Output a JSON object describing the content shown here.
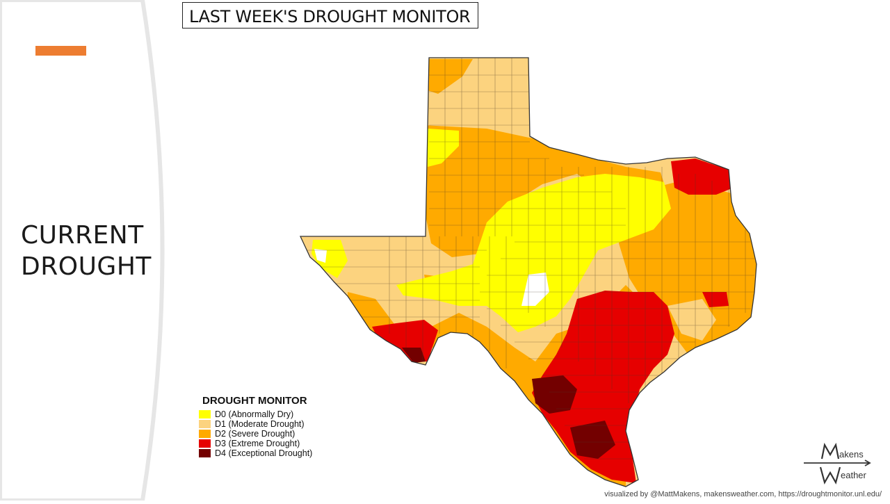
{
  "slide": {
    "title_line1": "CURRENT",
    "title_line2": "DROUGHT",
    "accent_color": "#ED7D31"
  },
  "map": {
    "title": "LAST WEEK'S DROUGHT MONITOR",
    "region": "Texas",
    "categories_colors": {
      "D0": "#FFFF00",
      "D1": "#FCD37F",
      "D2": "#FFAA00",
      "D3": "#E60000",
      "D4": "#730000"
    }
  },
  "legend": {
    "title": "DROUGHT MONITOR",
    "items": [
      {
        "code": "D0",
        "label": "D0 (Abnormally Dry)",
        "color": "#FFFF00"
      },
      {
        "code": "D1",
        "label": "D1 (Moderate Drought)",
        "color": "#FCD37F"
      },
      {
        "code": "D2",
        "label": "D2 (Severe Drought)",
        "color": "#FFAA00"
      },
      {
        "code": "D3",
        "label": "D3 (Extreme Drought)",
        "color": "#E60000"
      },
      {
        "code": "D4",
        "label": "D4 (Exceptional Drought)",
        "color": "#730000"
      }
    ]
  },
  "logo": {
    "line1": "akens",
    "line2": "eather"
  },
  "footer": {
    "credit": "visualized by @MattMakens, makensweather.com, https://droughtmonitor.unl.edu/"
  }
}
